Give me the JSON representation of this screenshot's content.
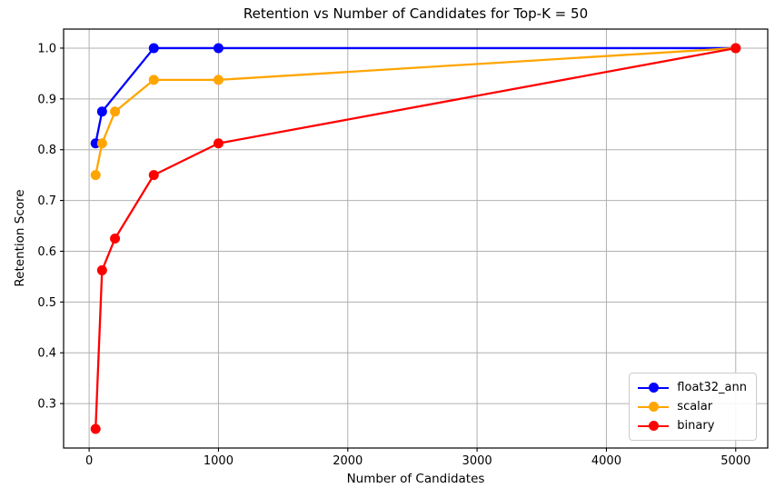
{
  "chart_data": {
    "type": "line",
    "title": "Retention vs Number of Candidates for Top-K = 50",
    "xlabel": "Number of Candidates",
    "ylabel": "Retention Score",
    "xlim": [
      -197.5,
      5247.5
    ],
    "ylim": [
      0.2125,
      1.0375
    ],
    "x_ticks": [
      0,
      1000,
      2000,
      3000,
      4000,
      5000
    ],
    "y_ticks": [
      0.3,
      0.4,
      0.5,
      0.6,
      0.7,
      0.8,
      0.9,
      1.0
    ],
    "grid": true,
    "legend_position": "lower right",
    "series": [
      {
        "name": "float32_ann",
        "color": "#0000ff",
        "x": [
          50,
          100,
          500,
          1000,
          5000
        ],
        "y": [
          0.8125,
          0.875,
          1.0,
          1.0,
          1.0
        ]
      },
      {
        "name": "scalar",
        "color": "#ffa500",
        "x": [
          50,
          100,
          200,
          500,
          1000,
          5000
        ],
        "y": [
          0.75,
          0.8125,
          0.875,
          0.9375,
          0.9375,
          1.0
        ]
      },
      {
        "name": "binary",
        "color": "#ff0000",
        "x": [
          50,
          100,
          200,
          500,
          1000,
          5000
        ],
        "y": [
          0.25,
          0.5625,
          0.625,
          0.75,
          0.8125,
          1.0
        ]
      }
    ]
  },
  "colors": {
    "grid": "#b0b0b0",
    "axis": "#000000",
    "text": "#000000",
    "background": "#ffffff",
    "legend_border": "#cccccc"
  }
}
